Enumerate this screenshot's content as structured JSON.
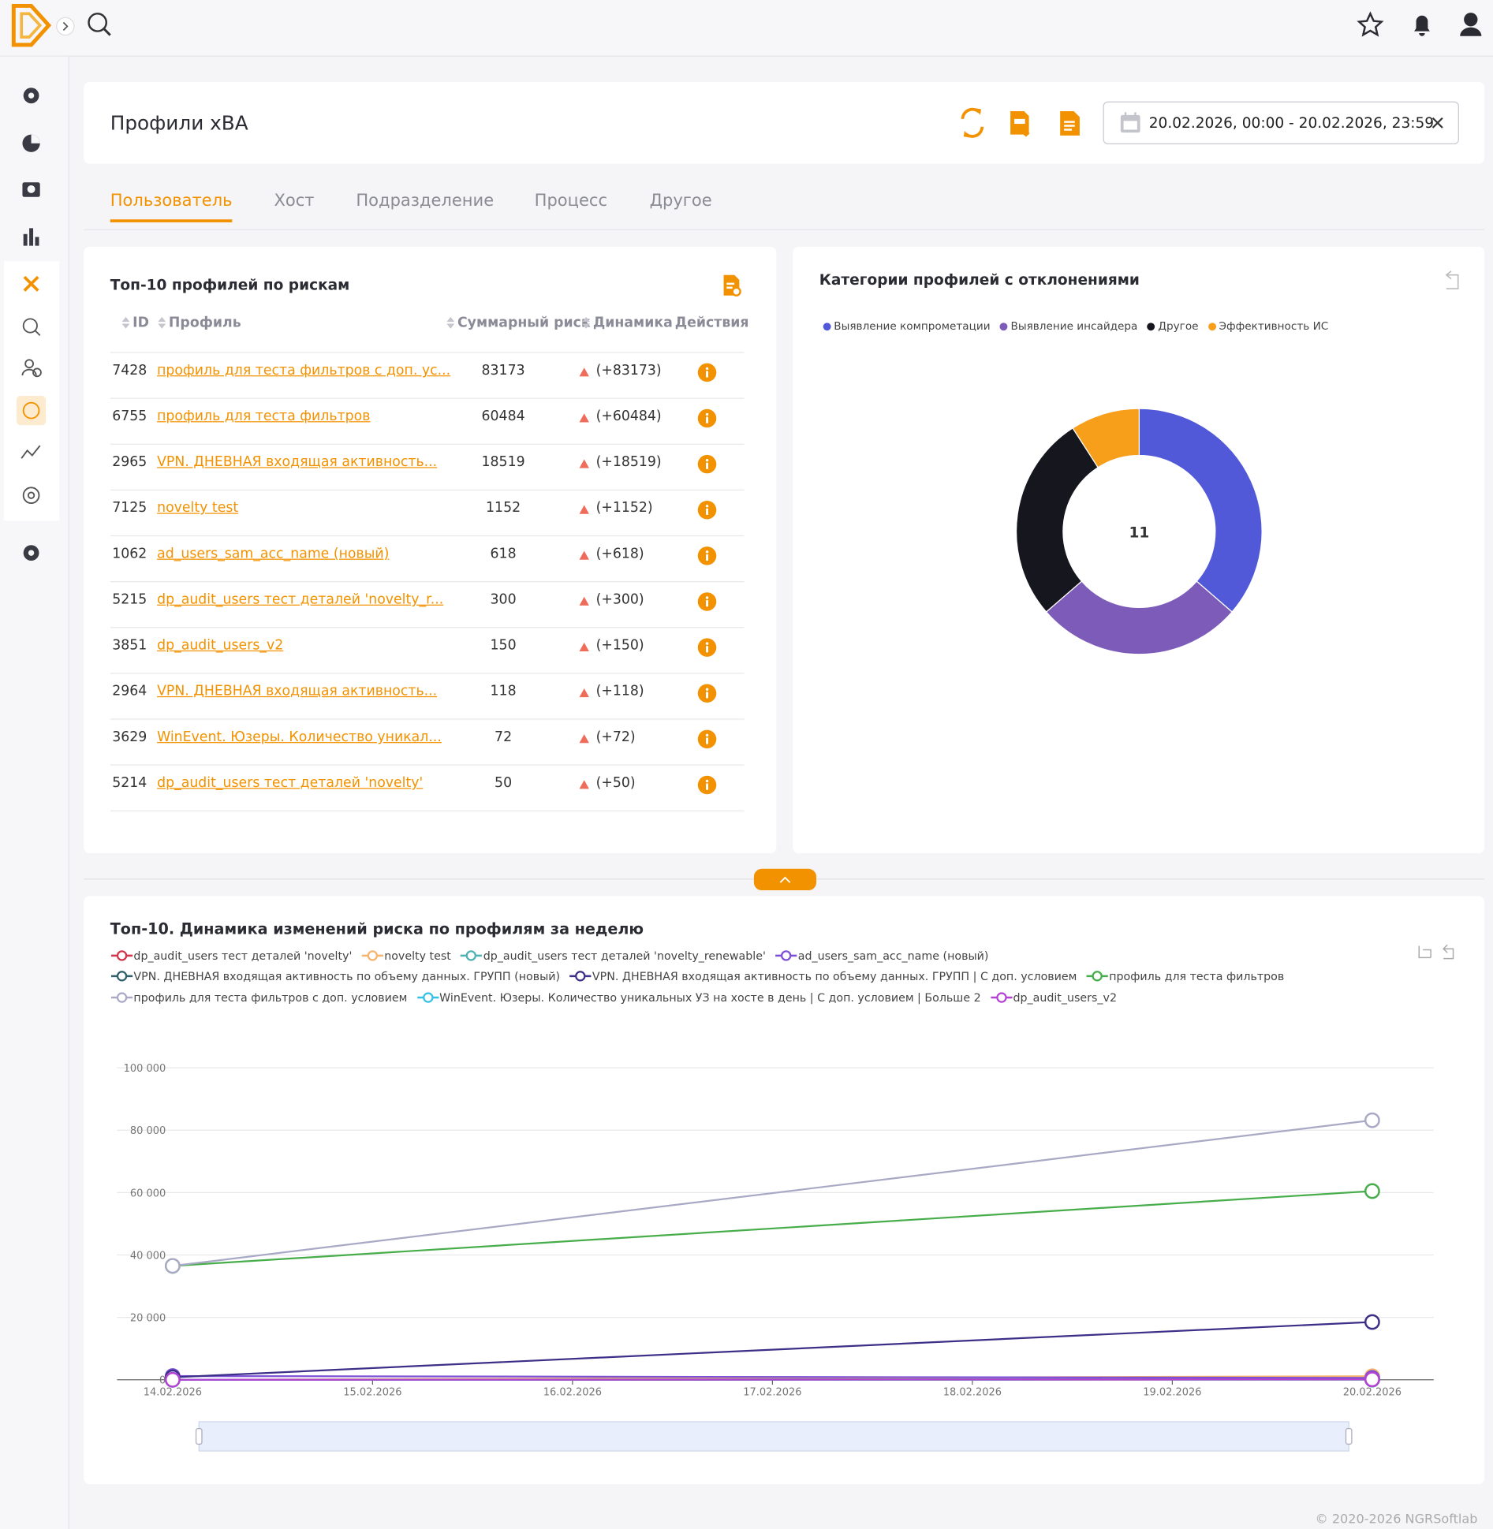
{
  "header": {
    "title": "Профили xBA",
    "date_range": "20.02.2026, 00:00 - 20.02.2026, 23:59"
  },
  "tabs": [
    "Пользователь",
    "Хост",
    "Подразделение",
    "Процесс",
    "Другое"
  ],
  "table": {
    "title": "Топ-10 профилей по рискам",
    "columns": [
      "ID",
      "Профиль",
      "Суммарный риск",
      "Динамика",
      "Действия"
    ],
    "rows": [
      [
        "7428",
        "профиль для теста фильтров с доп. ус...",
        "83173",
        "(+83173)"
      ],
      [
        "6755",
        "профиль для теста фильтров",
        "60484",
        "(+60484)"
      ],
      [
        "2965",
        "VPN. ДНЕВНАЯ входящая активность...",
        "18519",
        "(+18519)"
      ],
      [
        "7125",
        "novelty test",
        "1152",
        "(+1152)"
      ],
      [
        "1062",
        "ad_users_sam_acc_name (новый)",
        "618",
        "(+618)"
      ],
      [
        "5215",
        "dp_audit_users тест деталей 'novelty_r...",
        "300",
        "(+300)"
      ],
      [
        "3851",
        "dp_audit_users_v2",
        "150",
        "(+150)"
      ],
      [
        "2964",
        "VPN. ДНЕВНАЯ входящая активность...",
        "118",
        "(+118)"
      ],
      [
        "3629",
        "WinEvent. Юзеры. Количество уникал...",
        "72",
        "(+72)"
      ],
      [
        "5214",
        "dp_audit_users тест деталей 'novelty'",
        "50",
        "(+50)"
      ]
    ]
  },
  "footer": "© 2020-2026 NGRSoftlab",
  "chart_data": [
    {
      "type": "donut",
      "title": "Категории профилей с отклонениями",
      "categories": [
        "Выявление компрометации",
        "Выявление инсайдера",
        "Другое",
        "Эффективность ИС"
      ],
      "values": [
        4,
        3,
        3,
        1
      ],
      "colors": [
        "#5159d8",
        "#7d5cb9",
        "#16161e",
        "#f79e1b"
      ],
      "total": 11
    },
    {
      "type": "line",
      "title": "Топ-10. Динамика изменений риска по профилям за неделю",
      "x": [
        "14.02.2026",
        "15.02.2026",
        "16.02.2026",
        "17.02.2026",
        "18.02.2026",
        "19.02.2026",
        "20.02.2026"
      ],
      "ylim": [
        0,
        100000
      ],
      "yticks": [
        0,
        {
          "value": 20000,
          "label": "20 000"
        },
        {
          "value": 40000,
          "label": "40 000"
        },
        {
          "value": 60000,
          "label": "60 000"
        },
        {
          "value": 80000,
          "label": "80 000"
        },
        {
          "value": 100000,
          "label": "100 000"
        }
      ],
      "grid": true,
      "series": [
        {
          "name": "dp_audit_users тест деталей 'novelty'",
          "color": "#d4344a",
          "x": [
            "14.02.2026",
            "20.02.2026"
          ],
          "values": [
            0,
            50
          ]
        },
        {
          "name": "novelty test",
          "color": "#f8b36c",
          "x": [
            "14.02.2026",
            "20.02.2026"
          ],
          "values": [
            0,
            1152
          ]
        },
        {
          "name": "dp_audit_users тест деталей 'novelty_renewable'",
          "color": "#4fb1b1",
          "x": [
            "14.02.2026",
            "20.02.2026"
          ],
          "values": [
            0,
            300
          ]
        },
        {
          "name": "ad_users_sam_acc_name (новый)",
          "color": "#7b4fd6",
          "x": [
            "14.02.2026",
            "20.02.2026"
          ],
          "values": [
            1200,
            618
          ]
        },
        {
          "name": "VPN. ДНЕВНАЯ входящая активность по объему данных. ГРУПП (новый)",
          "color": "#2f5f6b",
          "x": [
            "14.02.2026",
            "20.02.2026"
          ],
          "values": [
            0,
            118
          ]
        },
        {
          "name": "VPN. ДНЕВНАЯ входящая активность по объему данных. ГРУПП | С доп. условием",
          "color": "#3b2f87",
          "x": [
            "14.02.2026",
            "20.02.2026"
          ],
          "values": [
            800,
            18519
          ]
        },
        {
          "name": "профиль для теста фильтров",
          "color": "#46ad4a",
          "x": [
            "14.02.2026",
            "20.02.2026"
          ],
          "values": [
            36500,
            60484
          ]
        },
        {
          "name": "профиль для теста фильтров с доп. условием",
          "color": "#a9a9c6",
          "x": [
            "14.02.2026",
            "20.02.2026"
          ],
          "values": [
            36500,
            83173
          ]
        },
        {
          "name": "WinEvent. Юзеры. Количество уникальных УЗ на хосте в день | С доп. условием | Больше 2",
          "color": "#33c0e6",
          "x": [
            "14.02.2026",
            "20.02.2026"
          ],
          "values": [
            0,
            72
          ]
        },
        {
          "name": "dp_audit_users_v2",
          "color": "#b342d2",
          "x": [
            "14.02.2026",
            "20.02.2026"
          ],
          "values": [
            0,
            150
          ]
        }
      ]
    }
  ]
}
